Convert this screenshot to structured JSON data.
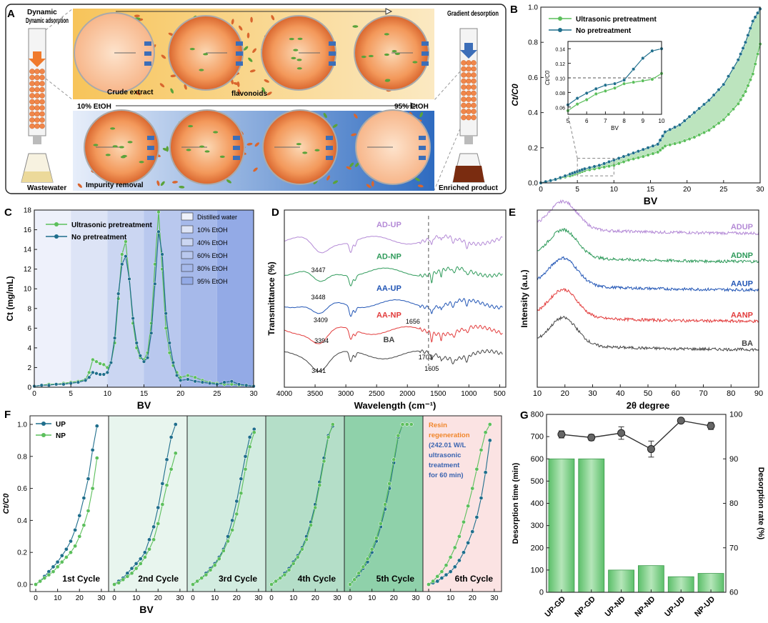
{
  "colors": {
    "up": "#5cbf5c",
    "np": "#1f6e8c",
    "band_up": "#9fd9a3",
    "purple": "#b48ad6",
    "green": "#2e9a5a",
    "blue": "#2155b5",
    "red": "#e23b3b",
    "gray": "#444444",
    "resin": "#f0864a",
    "arrow": "#3c6eb8",
    "extract_green": "#5aa33a",
    "bar": "#7ed08a",
    "regen_text": "#f0862b",
    "regen_blue": "#3a64b0"
  },
  "panel_a": {
    "letter": "A",
    "dynamic_adsorption": "Dynamic adsorption",
    "gradient_desorption": "Gradient desorption",
    "wastewater": "Wastewater",
    "enriched_product": "Enriched product",
    "crude_extract": "Crude extract",
    "flavonoids": "flavonoids",
    "etoh_start": "10% EtOH",
    "etoh_end": "95% EtOH",
    "impurity_removal": "Impurity removal"
  },
  "chart_data": [
    {
      "id": "B",
      "type": "line",
      "title": "",
      "xlabel": "BV",
      "ylabel": "Ct/C0",
      "xlim": [
        0,
        30
      ],
      "ylim": [
        0,
        1.0
      ],
      "xticks": [
        0,
        5,
        10,
        15,
        20,
        25,
        30
      ],
      "yticks": [
        0.0,
        0.2,
        0.4,
        0.6,
        0.8,
        1.0
      ],
      "legend": "top-left",
      "series": [
        {
          "name": "Ultrasonic pretreatment",
          "x": [
            0,
            2,
            4,
            5,
            6,
            8,
            10,
            12,
            14,
            16,
            17,
            19,
            21,
            23,
            25,
            27,
            28,
            29,
            30
          ],
          "values": [
            0.0,
            0.02,
            0.04,
            0.055,
            0.07,
            0.085,
            0.1,
            0.13,
            0.15,
            0.175,
            0.21,
            0.23,
            0.26,
            0.3,
            0.36,
            0.45,
            0.52,
            0.62,
            0.79
          ]
        },
        {
          "name": "No pretreatment",
          "x": [
            0,
            2,
            4,
            5,
            6,
            8,
            10,
            12,
            14,
            16,
            17,
            19,
            21,
            23,
            25,
            27,
            28,
            29,
            30
          ],
          "values": [
            0.0,
            0.02,
            0.05,
            0.065,
            0.08,
            0.1,
            0.13,
            0.16,
            0.19,
            0.22,
            0.29,
            0.33,
            0.4,
            0.47,
            0.56,
            0.7,
            0.8,
            0.92,
            0.99
          ]
        }
      ],
      "inset": {
        "xlabel": "BV",
        "ylabel": "Ct/C0",
        "xlim": [
          5,
          10
        ],
        "ylim": [
          0.05,
          0.15
        ],
        "xticks": [
          5,
          6,
          7,
          8,
          9,
          10
        ],
        "yticks": [
          0.06,
          0.08,
          0.1,
          0.12,
          0.14
        ],
        "threshold": 0.1,
        "series": [
          {
            "name": "Ultrasonic pretreatment",
            "x": [
              5,
              5.5,
              6,
              6.5,
              7,
              7.5,
              8,
              8.5,
              9,
              9.5,
              10
            ],
            "values": [
              0.055,
              0.064,
              0.07,
              0.078,
              0.082,
              0.086,
              0.092,
              0.094,
              0.096,
              0.098,
              0.106
            ]
          },
          {
            "name": "No pretreatment",
            "x": [
              5,
              5.5,
              6,
              6.5,
              7,
              7.5,
              8,
              8.5,
              9,
              9.5,
              10
            ],
            "values": [
              0.063,
              0.072,
              0.079,
              0.085,
              0.09,
              0.092,
              0.097,
              0.112,
              0.127,
              0.137,
              0.14
            ]
          }
        ]
      }
    },
    {
      "id": "C",
      "type": "line",
      "xlabel": "BV",
      "ylabel": "Ct (mg/mL)",
      "xlim": [
        0,
        30
      ],
      "ylim": [
        0,
        18
      ],
      "xticks": [
        0,
        5,
        10,
        15,
        20,
        25,
        30
      ],
      "yticks": [
        0,
        2,
        4,
        6,
        8,
        10,
        12,
        14,
        16,
        18
      ],
      "legend": "top-left",
      "bands": [
        {
          "label": "Distilled water",
          "from": 0,
          "to": 5,
          "color": "#eef1fb"
        },
        {
          "label": "10% EtOH",
          "from": 5,
          "to": 10,
          "color": "#dde4f6"
        },
        {
          "label": "40% EtOH",
          "from": 10,
          "to": 15,
          "color": "#cbd6f2"
        },
        {
          "label": "60% EtOH",
          "from": 15,
          "to": 20,
          "color": "#b9c8ee"
        },
        {
          "label": "80% EtOH",
          "from": 20,
          "to": 25,
          "color": "#a6b9ea"
        },
        {
          "label": "95% EtOH",
          "from": 25,
          "to": 30,
          "color": "#93aae6"
        }
      ],
      "series": [
        {
          "name": "Ultrasonic pretreatment",
          "x": [
            0,
            1,
            2,
            3,
            4,
            5,
            6,
            7,
            7.5,
            8,
            8.5,
            9,
            9.5,
            10,
            10.5,
            11,
            11.5,
            12,
            12.5,
            13,
            13.5,
            14,
            14.5,
            15,
            15.5,
            16,
            16.5,
            17,
            17.5,
            18,
            18.5,
            19,
            19.5,
            20,
            21,
            22,
            23,
            24,
            25,
            26,
            27,
            28,
            29,
            30
          ],
          "values": [
            0.1,
            0.2,
            0.3,
            0.3,
            0.4,
            0.5,
            0.6,
            0.8,
            1.5,
            2.8,
            2.6,
            2.4,
            2.3,
            2.0,
            2.5,
            4.5,
            9.0,
            13.5,
            14.8,
            11.0,
            6.5,
            4.0,
            3.0,
            2.8,
            3.5,
            6.5,
            12.5,
            17.8,
            12.0,
            6.0,
            3.5,
            2.2,
            1.5,
            1.0,
            1.2,
            1.0,
            0.7,
            0.5,
            0.4,
            0.3,
            0.3,
            0.2,
            0.2,
            0.1
          ]
        },
        {
          "name": "No pretreatment",
          "x": [
            0,
            1,
            2,
            3,
            4,
            5,
            6,
            7,
            7.5,
            8,
            8.5,
            9,
            9.5,
            10,
            10.5,
            11,
            11.5,
            12,
            12.5,
            13,
            13.5,
            14,
            14.5,
            15,
            15.5,
            16,
            16.5,
            17,
            17.5,
            18,
            18.5,
            19,
            19.5,
            20,
            21,
            22,
            23,
            24,
            25,
            26,
            27,
            28,
            29,
            30
          ],
          "values": [
            0.1,
            0.2,
            0.2,
            0.3,
            0.3,
            0.4,
            0.5,
            0.7,
            1.0,
            1.5,
            1.4,
            1.3,
            1.3,
            1.5,
            2.5,
            5.0,
            9.5,
            12.5,
            13.3,
            11.0,
            7.0,
            4.5,
            3.2,
            2.6,
            3.0,
            5.5,
            10.5,
            15.8,
            13.5,
            7.5,
            4.5,
            2.5,
            1.2,
            0.7,
            0.8,
            0.6,
            0.5,
            0.4,
            0.3,
            0.5,
            0.6,
            0.3,
            0.2,
            0.1
          ]
        }
      ]
    },
    {
      "id": "D",
      "type": "line",
      "xlabel": "Wavelength (cm⁻¹)",
      "ylabel": "Transmittance (%)",
      "xlim": [
        4000,
        400
      ],
      "xticks": [
        4000,
        3500,
        3000,
        2500,
        2000,
        1500,
        1000,
        500
      ],
      "marker_line": 1656,
      "series": [
        {
          "name": "AD-UP",
          "color_key": "purple",
          "offset": 5.2
        },
        {
          "name": "AD-NP",
          "color_key": "green",
          "offset": 3.9
        },
        {
          "name": "AA-UP",
          "color_key": "blue",
          "offset": 2.6
        },
        {
          "name": "AA-NP",
          "color_key": "red",
          "offset": 1.5
        },
        {
          "name": "BA",
          "color_key": "gray",
          "offset": 0.5
        }
      ],
      "annotations": [
        "3447",
        "3448",
        "3409",
        "3394",
        "3441",
        "1656",
        "1703",
        "1605"
      ]
    },
    {
      "id": "E",
      "type": "line",
      "xlabel": "2θ degree",
      "ylabel": "Intensity (a.u.)",
      "xlim": [
        10,
        90
      ],
      "xticks": [
        10,
        20,
        30,
        40,
        50,
        60,
        70,
        80,
        90
      ],
      "series": [
        {
          "name": "ADUP",
          "color_key": "purple",
          "offset": 4.2
        },
        {
          "name": "ADNP",
          "color_key": "green",
          "offset": 3.3
        },
        {
          "name": "AAUP",
          "color_key": "blue",
          "offset": 2.4
        },
        {
          "name": "AANP",
          "color_key": "red",
          "offset": 1.4
        },
        {
          "name": "BA",
          "color_key": "gray",
          "offset": 0.5
        }
      ]
    },
    {
      "id": "F",
      "type": "line",
      "xlabel": "BV",
      "ylabel": "Ct/C0",
      "ylim": [
        0,
        1.0
      ],
      "yticks": [
        0.0,
        0.2,
        0.4,
        0.6,
        0.8,
        1.0
      ],
      "xticks": [
        0,
        10,
        20,
        30
      ],
      "legend": "top-left",
      "cycles": [
        {
          "label": "1st Cycle",
          "bg": "#ffffff",
          "up": [
            0.0,
            0.02,
            0.05,
            0.08,
            0.11,
            0.14,
            0.18,
            0.22,
            0.27,
            0.34,
            0.43,
            0.54,
            0.66,
            0.84,
            0.99
          ],
          "np": [
            0.0,
            0.02,
            0.04,
            0.06,
            0.08,
            0.11,
            0.14,
            0.17,
            0.2,
            0.24,
            0.3,
            0.37,
            0.46,
            0.6,
            0.79
          ]
        },
        {
          "label": "2nd Cycle",
          "bg": "#e8f5ee",
          "up": [
            0.0,
            0.02,
            0.04,
            0.07,
            0.1,
            0.13,
            0.16,
            0.2,
            0.28,
            0.36,
            0.48,
            0.63,
            0.78,
            0.92,
            1.0
          ],
          "np": [
            0.0,
            0.01,
            0.03,
            0.05,
            0.07,
            0.1,
            0.13,
            0.17,
            0.22,
            0.28,
            0.38,
            0.5,
            0.62,
            0.72,
            0.82
          ]
        },
        {
          "label": "3rd Cycle",
          "bg": "#d2ece0",
          "up": [
            0.0,
            0.02,
            0.04,
            0.07,
            0.1,
            0.13,
            0.17,
            0.22,
            0.3,
            0.4,
            0.52,
            0.66,
            0.8,
            0.92,
            0.97
          ],
          "np": [
            0.0,
            0.02,
            0.04,
            0.06,
            0.09,
            0.12,
            0.16,
            0.21,
            0.27,
            0.34,
            0.44,
            0.57,
            0.72,
            0.86,
            0.95
          ]
        },
        {
          "label": "4th Cycle",
          "bg": "#b4dec8",
          "up": [
            0.0,
            0.02,
            0.04,
            0.07,
            0.1,
            0.14,
            0.18,
            0.23,
            0.3,
            0.39,
            0.5,
            0.64,
            0.79,
            0.93,
            0.99
          ],
          "np": [
            0.0,
            0.02,
            0.04,
            0.06,
            0.09,
            0.13,
            0.17,
            0.22,
            0.28,
            0.37,
            0.48,
            0.62,
            0.77,
            0.92,
            1.0
          ]
        },
        {
          "label": "5th Cycle",
          "bg": "#8fd1aa",
          "up": [
            0.0,
            0.03,
            0.06,
            0.1,
            0.14,
            0.2,
            0.27,
            0.36,
            0.47,
            0.6,
            0.76,
            0.92,
            1.0,
            1.0,
            1.0
          ],
          "np": [
            0.0,
            0.03,
            0.07,
            0.11,
            0.16,
            0.22,
            0.29,
            0.38,
            0.5,
            0.63,
            0.78,
            0.93,
            1.0,
            1.0,
            1.0
          ]
        },
        {
          "label": "6th Cycle",
          "bg": "#fbe3e3",
          "up": [
            0.0,
            0.01,
            0.02,
            0.04,
            0.06,
            0.08,
            0.11,
            0.15,
            0.2,
            0.26,
            0.33,
            0.42,
            0.54,
            0.7,
            0.9
          ],
          "np": [
            0.0,
            0.02,
            0.05,
            0.08,
            0.12,
            0.17,
            0.23,
            0.3,
            0.39,
            0.49,
            0.6,
            0.72,
            0.84,
            0.95,
            1.0
          ]
        }
      ],
      "x": [
        0,
        2,
        4,
        6,
        8,
        10,
        12,
        14,
        16,
        18,
        20,
        22,
        24,
        26,
        28
      ],
      "series_names": [
        "UP",
        "NP"
      ],
      "regeneration_note": [
        "Resin",
        "regeneration",
        "(242.01 W/L",
        "ultrasonic",
        "treatment",
        "for 60 min)"
      ]
    },
    {
      "id": "G",
      "type": "bar",
      "categories": [
        "UP-GD",
        "NP-GD",
        "UP-ND",
        "NP-ND",
        "UP-UD",
        "NP-UD"
      ],
      "bar_values": [
        600,
        600,
        100,
        120,
        70,
        85
      ],
      "line_values": [
        95.5,
        94.8,
        95.8,
        92.2,
        98.6,
        97.4
      ],
      "line_errors": [
        0.8,
        0.7,
        1.4,
        1.8,
        0.5,
        0.8
      ],
      "ylabel_left": "Desorption time (min)",
      "ylabel_right": "Desorption rate (%)",
      "ylim_left": [
        0,
        800
      ],
      "ylim_right": [
        60,
        100
      ],
      "yticks_left": [
        0,
        100,
        200,
        300,
        400,
        500,
        600,
        700,
        800
      ],
      "yticks_right": [
        60,
        70,
        80,
        90,
        100
      ]
    }
  ]
}
